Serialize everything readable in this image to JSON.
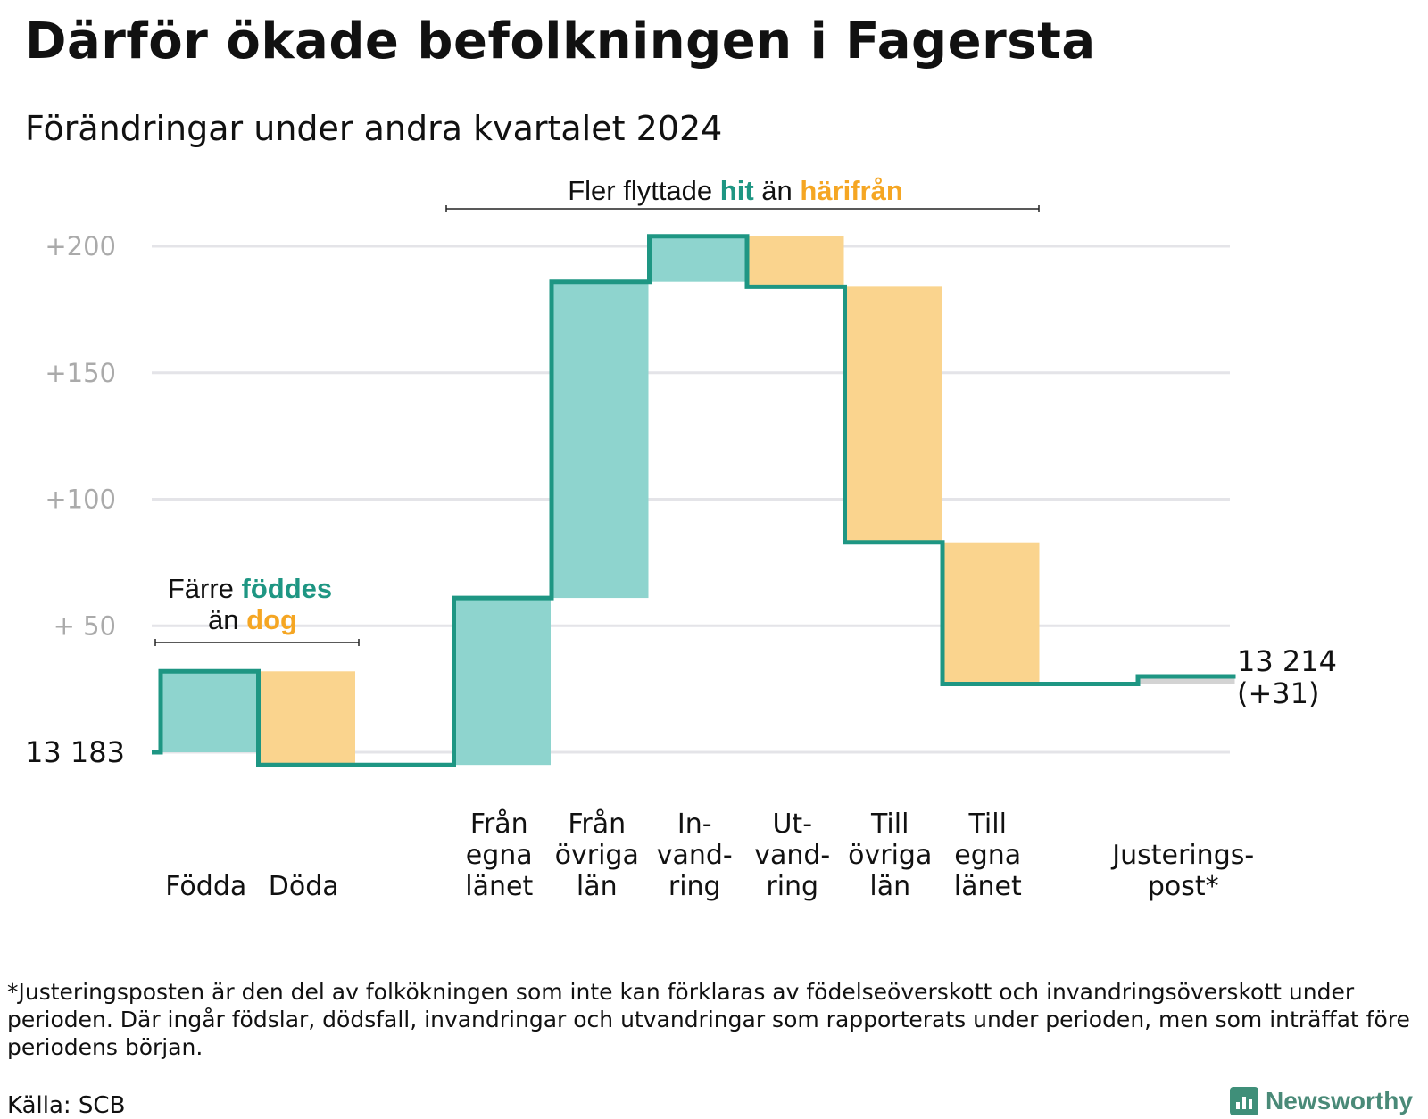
{
  "title": "Därför ökade befolkningen i Fagersta",
  "subtitle": "Förändringar under andra kvartalet 2024",
  "footnote": "*Justeringsposten är den del av folkökningen som inte kan förklaras av födelseöverskott och invandringsöverskott under perioden. Där ingår födslar, dödsfall, invandringar och utvandringar som rapporterats under perioden, men som inträffat före periodens början.",
  "source": "Källa: SCB",
  "brand": "Newsworthy",
  "colors": {
    "increase": "#8ed4ce",
    "decrease": "#fad48e",
    "line": "#1e9683",
    "grid": "#e4e4e8",
    "tick": "#aaaaaa",
    "hit": "#1e9683",
    "harifran": "#f5a623",
    "adjustment": "#d3d3d3"
  },
  "annotations": {
    "born": {
      "pre": "Färre ",
      "highlight1": "föddes",
      "mid": "än ",
      "highlight2": "dog"
    },
    "moved": {
      "pre": "Fler flyttade ",
      "highlight1": "hit",
      "mid": " än ",
      "highlight2": "härifrån"
    }
  },
  "chart_data": {
    "type": "waterfall",
    "title": "Därför ökade befolkningen i Fagersta",
    "subtitle": "Förändringar under andra kvartalet 2024",
    "start_label": "13  183",
    "start_value": 13183,
    "end_label_line1": "13 214",
    "end_label_line2": "(+31)",
    "end_value": 13214,
    "y_ticks": [
      {
        "value": 50,
        "label": "+  50"
      },
      {
        "value": 100,
        "label": "+100"
      },
      {
        "value": 150,
        "label": "+150"
      },
      {
        "value": 200,
        "label": "+200"
      }
    ],
    "ylim": [
      0,
      200
    ],
    "grid": true,
    "steps": [
      {
        "label": [
          "Födda"
        ],
        "change": 32,
        "kind": "increase"
      },
      {
        "label": [
          "Döda"
        ],
        "change": -37,
        "kind": "decrease"
      },
      {
        "label": [],
        "change": 0,
        "kind": "gap"
      },
      {
        "label": [
          "Från",
          "egna",
          "länet"
        ],
        "change": 66,
        "kind": "increase"
      },
      {
        "label": [
          "Från",
          "övriga",
          "län"
        ],
        "change": 125,
        "kind": "increase"
      },
      {
        "label": [
          "In-",
          "vand-",
          "ring"
        ],
        "change": 18,
        "kind": "increase"
      },
      {
        "label": [
          "Ut-",
          "vand-",
          "ring"
        ],
        "change": -20,
        "kind": "decrease"
      },
      {
        "label": [
          "Till",
          "övriga",
          "län"
        ],
        "change": -101,
        "kind": "decrease"
      },
      {
        "label": [
          "Till",
          "egna",
          "länet"
        ],
        "change": -56,
        "kind": "decrease"
      },
      {
        "label": [],
        "change": 0,
        "kind": "gap"
      },
      {
        "label": [
          "Justerings-",
          "post*"
        ],
        "change": 3,
        "kind": "adjustment"
      }
    ]
  }
}
